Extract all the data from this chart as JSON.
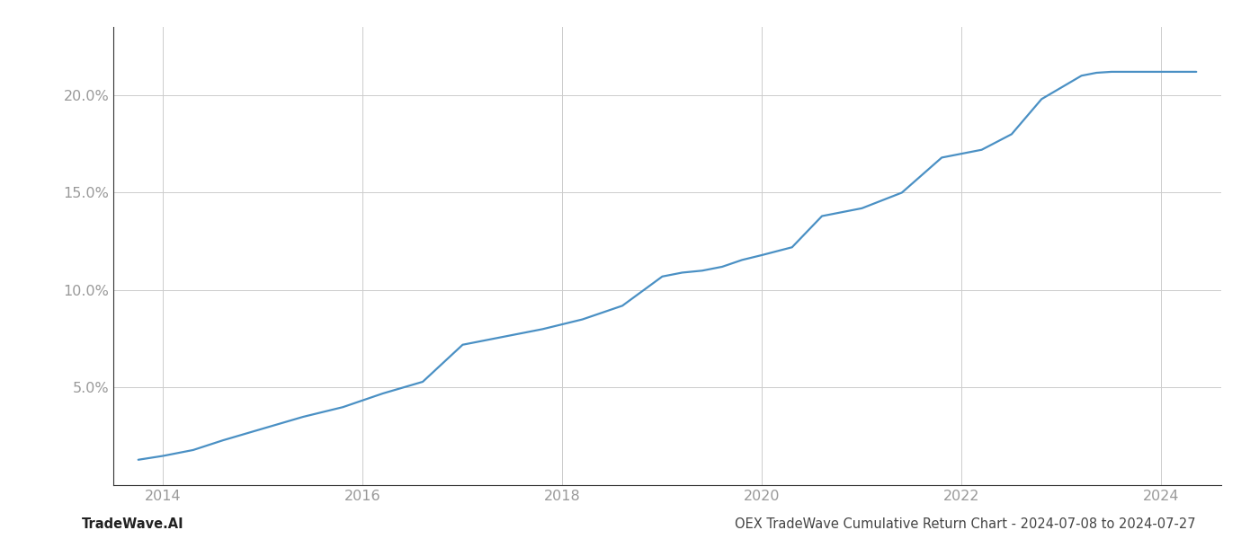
{
  "footer_left": "TradeWave.AI",
  "footer_right": "OEX TradeWave Cumulative Return Chart - 2024-07-08 to 2024-07-27",
  "line_color": "#4a90c4",
  "background_color": "#ffffff",
  "grid_color": "#cccccc",
  "x_years": [
    2013.75,
    2014.0,
    2014.3,
    2014.6,
    2015.0,
    2015.4,
    2015.8,
    2016.2,
    2016.6,
    2017.0,
    2017.4,
    2017.8,
    2018.2,
    2018.6,
    2019.0,
    2019.2,
    2019.4,
    2019.6,
    2019.8,
    2020.0,
    2020.3,
    2020.6,
    2021.0,
    2021.4,
    2021.8,
    2022.2,
    2022.5,
    2022.8,
    2023.0,
    2023.2,
    2023.35,
    2023.5,
    2023.8,
    2024.0,
    2024.2,
    2024.35
  ],
  "y_values": [
    1.3,
    1.5,
    1.8,
    2.3,
    2.9,
    3.5,
    4.0,
    4.7,
    5.3,
    7.2,
    7.6,
    8.0,
    8.5,
    9.2,
    10.7,
    10.9,
    11.0,
    11.2,
    11.55,
    11.8,
    12.2,
    13.8,
    14.2,
    15.0,
    16.8,
    17.2,
    18.0,
    19.8,
    20.4,
    21.0,
    21.15,
    21.2,
    21.2,
    21.2,
    21.2,
    21.2
  ],
  "xlim": [
    2013.5,
    2024.6
  ],
  "ylim": [
    0,
    23.5
  ],
  "yticks": [
    5.0,
    10.0,
    15.0,
    20.0
  ],
  "ytick_labels": [
    "5.0%",
    "10.0%",
    "15.0%",
    "20.0%"
  ],
  "xticks": [
    2014,
    2016,
    2018,
    2020,
    2022,
    2024
  ],
  "xtick_labels": [
    "2014",
    "2016",
    "2018",
    "2020",
    "2022",
    "2024"
  ],
  "line_width": 1.6,
  "tick_color": "#999999",
  "spine_color": "#333333",
  "footer_fontsize": 10.5,
  "tick_fontsize": 11.5
}
